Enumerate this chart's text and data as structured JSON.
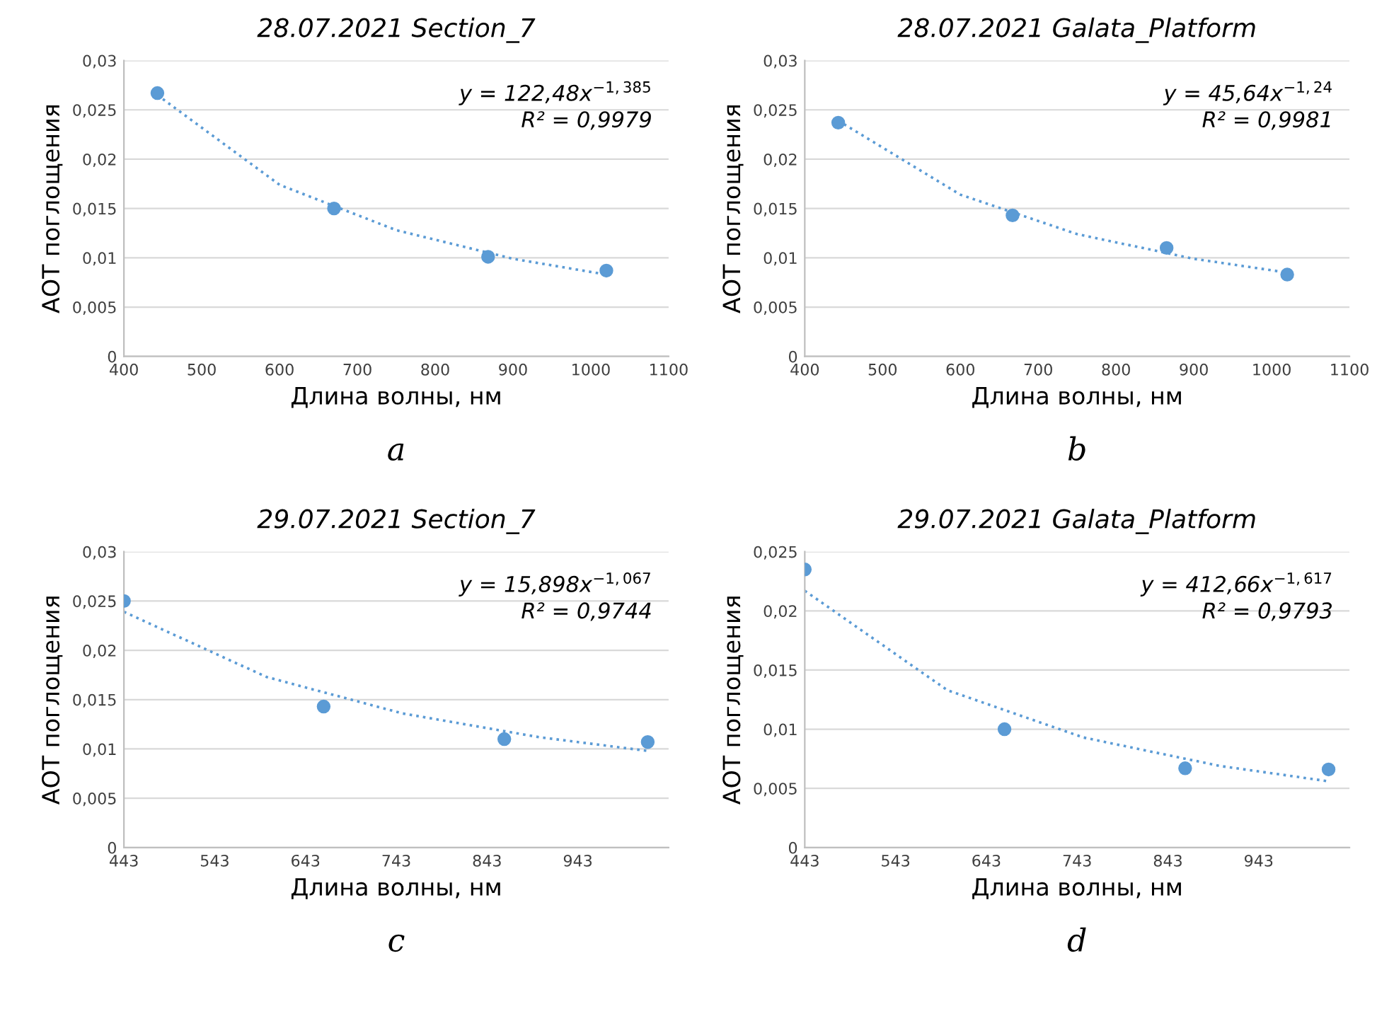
{
  "chart_data": [
    {
      "type": "scatter",
      "title": "28.07.2021 Section_7",
      "xlabel": "Длина волны, нм",
      "ylabel": "АОТ поглощения",
      "annotations": [
        "y = 122,48x$^{−1,385}$",
        "R² = 0,9979",
        "a"
      ],
      "xlim": [
        400,
        1100
      ],
      "xticks": [
        400,
        500,
        600,
        700,
        800,
        900,
        1000,
        1100
      ],
      "ylim": [
        0,
        0.03
      ],
      "yticks": [
        {
          "value": 0,
          "label": "0"
        },
        {
          "value": 0.005,
          "label": "0,005"
        },
        {
          "value": 0.01,
          "label": "0,01"
        },
        {
          "value": 0.015,
          "label": "0,015"
        },
        {
          "value": 0.02,
          "label": "0,02"
        },
        {
          "value": 0.025,
          "label": "0,025"
        },
        {
          "value": 0.03,
          "label": "0,03"
        }
      ],
      "grid": "y",
      "series": [
        {
          "color": "#5b9bd5",
          "marker": "circle",
          "x": [
            443,
            670,
            868,
            1020
          ],
          "values": [
            0.0267,
            0.015,
            0.0101,
            0.0087
          ]
        },
        {
          "type": "line",
          "marker": "none",
          "line_style": "dotted",
          "color": "#5b9bd5",
          "x": [
            443,
            600,
            750,
            900,
            1020
          ],
          "values": [
            0.0265,
            0.0174,
            0.0128,
            0.0099,
            0.0083
          ]
        }
      ]
    },
    {
      "type": "scatter",
      "title": "28.07.2021 Galata_Platform",
      "xlabel": "Длина волны, нм",
      "ylabel": "АОТ поглощения",
      "annotations": [
        "y = 45,64x$^{−1,24}$",
        "R² = 0,9981",
        "b"
      ],
      "xlim": [
        400,
        1100
      ],
      "xticks": [
        400,
        500,
        600,
        700,
        800,
        900,
        1000,
        1100
      ],
      "ylim": [
        0,
        0.03
      ],
      "yticks": [
        {
          "value": 0,
          "label": "0"
        },
        {
          "value": 0.005,
          "label": "0,005"
        },
        {
          "value": 0.01,
          "label": "0,01"
        },
        {
          "value": 0.015,
          "label": "0,015"
        },
        {
          "value": 0.02,
          "label": "0,02"
        },
        {
          "value": 0.025,
          "label": "0,025"
        },
        {
          "value": 0.03,
          "label": "0,03"
        }
      ],
      "grid": "y",
      "series": [
        {
          "color": "#5b9bd5",
          "marker": "circle",
          "x": [
            443,
            667,
            865,
            1020
          ],
          "values": [
            0.0237,
            0.0143,
            0.011,
            0.0083
          ]
        },
        {
          "type": "line",
          "marker": "none",
          "line_style": "dotted",
          "color": "#5b9bd5",
          "x": [
            443,
            600,
            750,
            900,
            1020
          ],
          "values": [
            0.0239,
            0.0164,
            0.0124,
            0.0099,
            0.0085
          ]
        }
      ]
    },
    {
      "type": "scatter",
      "title": "29.07.2021 Section_7",
      "xlabel": "Длина волны, нм",
      "ylabel": "АОТ поглощения",
      "annotations": [
        "y = 15,898x$^{−1,067}$",
        "R² = 0,9744",
        "c"
      ],
      "xlim": [
        443,
        1043
      ],
      "xticks": [
        443,
        543,
        643,
        743,
        843,
        943
      ],
      "ylim": [
        0,
        0.03
      ],
      "yticks": [
        {
          "value": 0,
          "label": "0"
        },
        {
          "value": 0.005,
          "label": "0,005"
        },
        {
          "value": 0.01,
          "label": "0,01"
        },
        {
          "value": 0.015,
          "label": "0,015"
        },
        {
          "value": 0.02,
          "label": "0,02"
        },
        {
          "value": 0.025,
          "label": "0,025"
        },
        {
          "value": 0.03,
          "label": "0,03"
        }
      ],
      "grid": "y",
      "series": [
        {
          "color": "#5b9bd5",
          "marker": "circle",
          "x": [
            443,
            663,
            862,
            1020
          ],
          "values": [
            0.025,
            0.0143,
            0.011,
            0.0107
          ]
        },
        {
          "type": "line",
          "marker": "none",
          "line_style": "dotted",
          "color": "#5b9bd5",
          "x": [
            443,
            600,
            750,
            900,
            1020
          ],
          "values": [
            0.0239,
            0.0173,
            0.0136,
            0.0112,
            0.0098
          ]
        }
      ]
    },
    {
      "type": "scatter",
      "title": "29.07.2021 Galata_Platform",
      "xlabel": "Длина волны, нм",
      "ylabel": "АОТ поглощения",
      "annotations": [
        "y = 412,66x$^{−1,617}$",
        "R² = 0,9793",
        "d"
      ],
      "xlim": [
        443,
        1043
      ],
      "xticks": [
        443,
        543,
        643,
        743,
        843,
        943
      ],
      "ylim": [
        0,
        0.025
      ],
      "yticks": [
        {
          "value": 0,
          "label": "0"
        },
        {
          "value": 0.005,
          "label": "0,005"
        },
        {
          "value": 0.01,
          "label": "0,01"
        },
        {
          "value": 0.015,
          "label": "0,015"
        },
        {
          "value": 0.02,
          "label": "0,02"
        },
        {
          "value": 0.025,
          "label": "0,025"
        }
      ],
      "grid": "y",
      "series": [
        {
          "color": "#5b9bd5",
          "marker": "circle",
          "x": [
            443,
            663,
            862,
            1020
          ],
          "values": [
            0.0235,
            0.01,
            0.0067,
            0.0066
          ]
        },
        {
          "type": "line",
          "marker": "none",
          "line_style": "dotted",
          "color": "#5b9bd5",
          "x": [
            443,
            600,
            750,
            900,
            1020
          ],
          "values": [
            0.0217,
            0.0133,
            0.0093,
            0.0069,
            0.0056
          ]
        }
      ]
    }
  ]
}
